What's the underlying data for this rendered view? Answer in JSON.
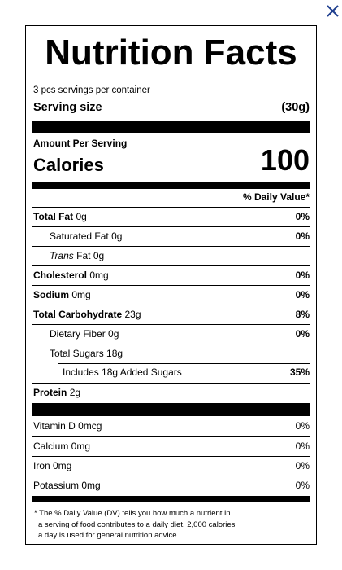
{
  "title": "Nutrition Facts",
  "servings_per_container": "3 pcs servings per container",
  "serving_size_label": "Serving size",
  "serving_size_value": "(30g)",
  "amount_per_serving": "Amount Per Serving",
  "calories_label": "Calories",
  "calories_value": "100",
  "daily_value_header": "% Daily Value*",
  "nutrients": [
    {
      "label": "Total Fat",
      "amount": "0g",
      "dv": "0%"
    },
    {
      "label": "Saturated Fat",
      "amount": "0g",
      "dv": "0%"
    },
    {
      "label": "Trans",
      "label_rest": "Fat",
      "amount": "0g",
      "dv": ""
    },
    {
      "label": "Cholesterol",
      "amount": "0mg",
      "dv": "0%"
    },
    {
      "label": "Sodium",
      "amount": "0mg",
      "dv": "0%"
    },
    {
      "label": "Total Carbohydrate",
      "amount": "23g",
      "dv": "8%"
    },
    {
      "label": "Dietary Fiber",
      "amount": "0g",
      "dv": "0%"
    },
    {
      "label": "Total Sugars",
      "amount": "18g",
      "dv": ""
    },
    {
      "label": "Includes 18g Added Sugars",
      "amount": "",
      "dv": "35%"
    },
    {
      "label": "Protein",
      "amount": "2g",
      "dv": ""
    }
  ],
  "vitamins": [
    {
      "label": "Vitamin D 0mcg",
      "dv": "0%"
    },
    {
      "label": "Calcium 0mg",
      "dv": "0%"
    },
    {
      "label": "Iron 0mg",
      "dv": "0%"
    },
    {
      "label": "Potassium 0mg",
      "dv": "0%"
    }
  ],
  "footnote_lines": [
    "* The % Daily Value (DV) tells you how much a nutrient in",
    "a serving of food contributes to a daily diet. 2,000 calories",
    "a day is used for general nutrition advice."
  ],
  "close_icon": "close-icon"
}
